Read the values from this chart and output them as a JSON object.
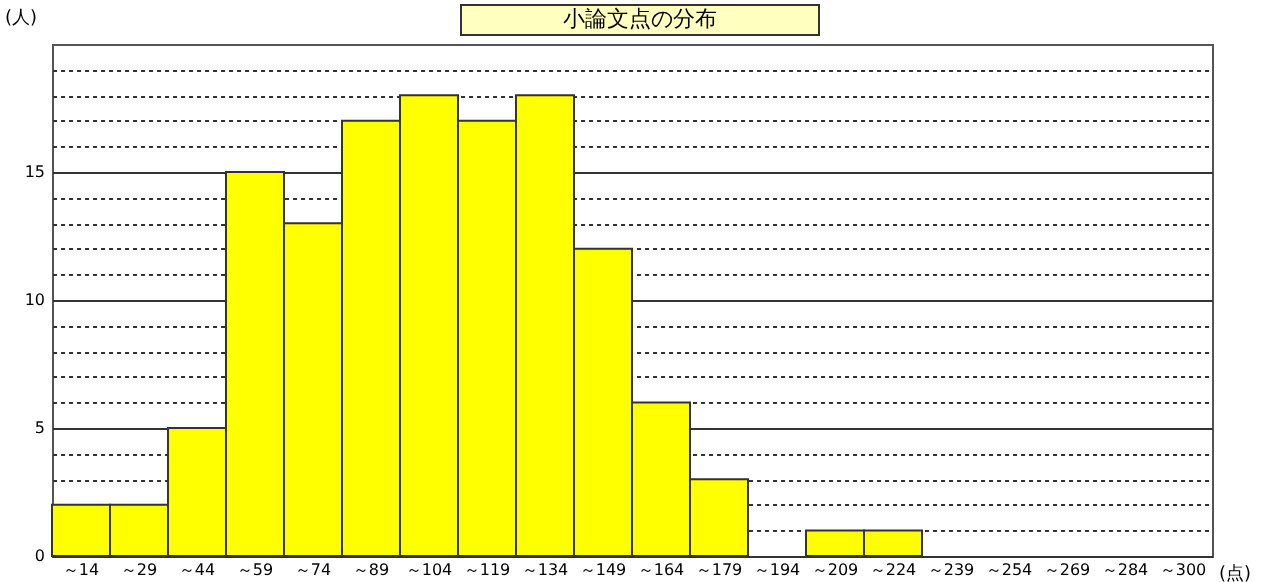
{
  "chart_data": {
    "type": "bar",
    "title": "小論文点の分布",
    "xlabel": "(点)",
    "ylabel": "(人)",
    "categories": [
      "～14",
      "～29",
      "～44",
      "～59",
      "～74",
      "～89",
      "～104",
      "～119",
      "～134",
      "～149",
      "～164",
      "～179",
      "～194",
      "～209",
      "～224",
      "～239",
      "～254",
      "～269",
      "～284",
      "～300"
    ],
    "values": [
      2,
      2,
      5,
      15,
      13,
      17,
      18,
      17,
      18,
      12,
      6,
      3,
      0,
      1,
      1,
      0,
      0,
      0,
      0,
      0
    ],
    "color": "#ffff00",
    "ylim": [
      0,
      20
    ],
    "yticks": [
      0,
      {
        "value": 1,
        "label": null
      },
      {
        "value": 2,
        "label": null
      },
      {
        "value": 3,
        "label": null
      },
      {
        "value": 4,
        "label": null
      },
      5,
      {
        "value": 6,
        "label": null
      },
      {
        "value": 7,
        "label": null
      },
      {
        "value": 8,
        "label": null
      },
      {
        "value": 9,
        "label": null
      },
      10,
      {
        "value": 11,
        "label": null
      },
      {
        "value": 12,
        "label": null
      },
      {
        "value": 13,
        "label": null
      },
      {
        "value": 14,
        "label": null
      },
      15,
      {
        "value": 16,
        "label": null
      },
      {
        "value": 17,
        "label": null
      },
      {
        "value": 18,
        "label": null
      },
      {
        "value": 19,
        "label": null
      }
    ],
    "grid": "y"
  }
}
